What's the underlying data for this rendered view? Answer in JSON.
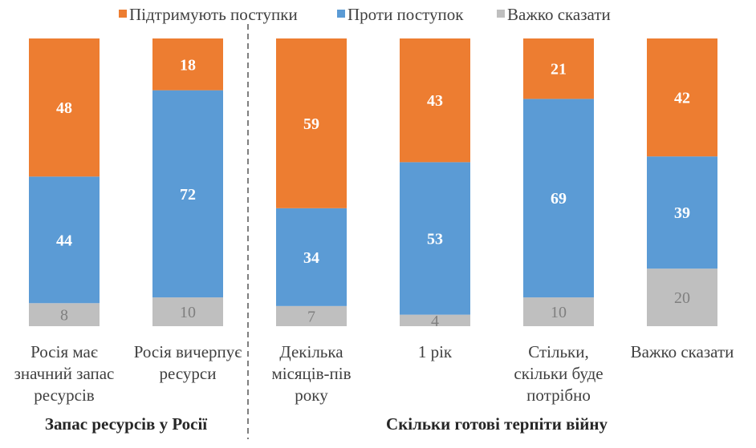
{
  "chart_data": {
    "type": "bar",
    "stacked": true,
    "categories": [
      [
        "Росія має",
        "значний запас",
        "ресурсів"
      ],
      [
        "Росія вичерпує",
        "ресурси"
      ],
      [
        "Декілька",
        "місяців-пів",
        "року"
      ],
      [
        "1 рік"
      ],
      [
        "Стільки,",
        "скільки буде",
        "потрібно"
      ],
      [
        "Важко сказати"
      ]
    ],
    "groups": [
      {
        "label": "Запас ресурсів у Росії",
        "categories": [
          0,
          1
        ]
      },
      {
        "label": "Скільки готові терпіти війну",
        "categories": [
          2,
          3,
          4,
          5
        ]
      }
    ],
    "series": [
      {
        "name": "Підтримують поступки",
        "color": "#ED7D31",
        "values": [
          48,
          18,
          59,
          43,
          21,
          42
        ]
      },
      {
        "name": "Проти поступок",
        "color": "#5B9BD5",
        "values": [
          44,
          72,
          34,
          53,
          69,
          39
        ]
      },
      {
        "name": "Важко сказати",
        "color": "#BFBFBF",
        "values": [
          8,
          10,
          7,
          4,
          10,
          20
        ]
      }
    ],
    "ylim": [
      0,
      100
    ],
    "grid": false,
    "legend": "top",
    "data_labels": true,
    "group_separator": "dashed"
  }
}
